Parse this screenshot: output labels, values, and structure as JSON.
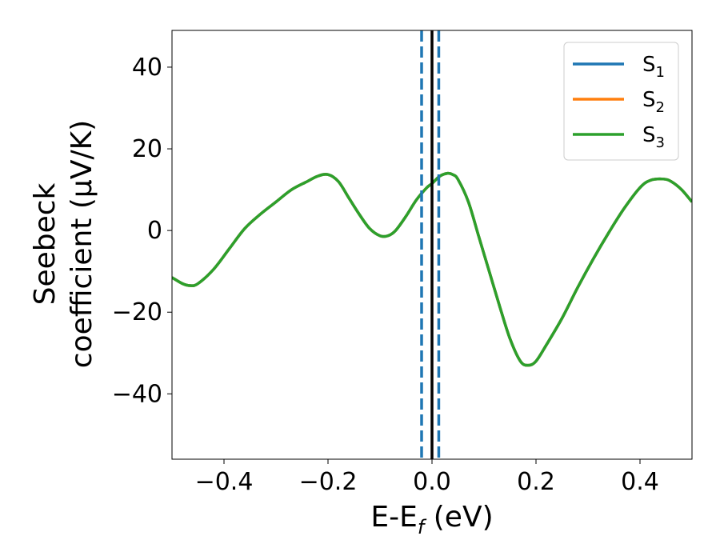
{
  "chart_data": {
    "type": "line",
    "title": "",
    "xlabel": {
      "main": "E-E",
      "sub": "f",
      "unit": " (eV)"
    },
    "ylabel": {
      "line1": "Seebeck",
      "line2": "coefficient  (μV/K)"
    },
    "xlim": [
      -0.5,
      0.5
    ],
    "ylim": [
      -56,
      49
    ],
    "x_ticks": [
      -0.4,
      -0.2,
      0.0,
      0.2,
      0.4
    ],
    "x_tick_labels": [
      "−0.4",
      "−0.2",
      "0.0",
      "0.2",
      "0.4"
    ],
    "y_ticks": [
      -40,
      -20,
      0,
      20,
      40
    ],
    "y_tick_labels": [
      "−40",
      "−20",
      "0",
      "20",
      "40"
    ],
    "grid": false,
    "legend_position": "top-right",
    "series": [
      {
        "name": "S",
        "sub": "1",
        "color": "#1f77b4",
        "x": [
          -0.5,
          -0.48,
          -0.465,
          -0.45,
          -0.42,
          -0.39,
          -0.36,
          -0.33,
          -0.3,
          -0.27,
          -0.24,
          -0.22,
          -0.2,
          -0.18,
          -0.16,
          -0.14,
          -0.12,
          -0.1,
          -0.085,
          -0.07,
          -0.05,
          -0.03,
          -0.01,
          0.0,
          0.015,
          0.03,
          0.04,
          0.05,
          0.07,
          0.09,
          0.11,
          0.13,
          0.15,
          0.17,
          0.185,
          0.2,
          0.22,
          0.25,
          0.28,
          0.31,
          0.34,
          0.37,
          0.4,
          0.42,
          0.445,
          0.46,
          0.48,
          0.5
        ],
        "y": [
          -11.5,
          -13.0,
          -13.5,
          -13.0,
          -9.5,
          -4.5,
          0.5,
          4.0,
          7.0,
          10.0,
          12.0,
          13.3,
          13.7,
          12.0,
          8.0,
          4.0,
          0.5,
          -1.3,
          -1.3,
          0.0,
          3.5,
          7.5,
          10.5,
          11.5,
          13.3,
          14.0,
          13.7,
          12.5,
          7.0,
          -1.5,
          -10.0,
          -18.5,
          -26.5,
          -32.0,
          -33.0,
          -32.0,
          -28.0,
          -21.5,
          -14.0,
          -7.0,
          -0.5,
          5.5,
          10.5,
          12.3,
          12.6,
          12.0,
          10.0,
          7.0
        ]
      },
      {
        "name": "S",
        "sub": "2",
        "color": "#ff7f0e",
        "x": [
          -0.5,
          -0.48,
          -0.465,
          -0.45,
          -0.42,
          -0.39,
          -0.36,
          -0.33,
          -0.3,
          -0.27,
          -0.24,
          -0.22,
          -0.2,
          -0.18,
          -0.16,
          -0.14,
          -0.12,
          -0.1,
          -0.085,
          -0.07,
          -0.05,
          -0.03,
          -0.01,
          0.0,
          0.015,
          0.03,
          0.04,
          0.05,
          0.07,
          0.09,
          0.11,
          0.13,
          0.15,
          0.17,
          0.185,
          0.2,
          0.22,
          0.25,
          0.28,
          0.31,
          0.34,
          0.37,
          0.4,
          0.42,
          0.445,
          0.46,
          0.48,
          0.5
        ],
        "y": [
          -11.5,
          -13.0,
          -13.5,
          -13.0,
          -9.5,
          -4.5,
          0.5,
          4.0,
          7.0,
          10.0,
          12.0,
          13.3,
          13.7,
          12.0,
          8.0,
          4.0,
          0.5,
          -1.3,
          -1.3,
          0.0,
          3.5,
          7.5,
          10.5,
          11.5,
          13.3,
          14.0,
          13.7,
          12.5,
          7.0,
          -1.5,
          -10.0,
          -18.5,
          -26.5,
          -32.0,
          -33.0,
          -32.0,
          -28.0,
          -21.5,
          -14.0,
          -7.0,
          -0.5,
          5.5,
          10.5,
          12.3,
          12.6,
          12.0,
          10.0,
          7.0
        ]
      },
      {
        "name": "S",
        "sub": "3",
        "color": "#2ca02c",
        "x": [
          -0.5,
          -0.48,
          -0.465,
          -0.45,
          -0.42,
          -0.39,
          -0.36,
          -0.33,
          -0.3,
          -0.27,
          -0.24,
          -0.22,
          -0.2,
          -0.18,
          -0.16,
          -0.14,
          -0.12,
          -0.1,
          -0.085,
          -0.07,
          -0.05,
          -0.03,
          -0.01,
          0.0,
          0.015,
          0.03,
          0.04,
          0.05,
          0.07,
          0.09,
          0.11,
          0.13,
          0.15,
          0.17,
          0.185,
          0.2,
          0.22,
          0.25,
          0.28,
          0.31,
          0.34,
          0.37,
          0.4,
          0.42,
          0.445,
          0.46,
          0.48,
          0.5
        ],
        "y": [
          -11.5,
          -13.0,
          -13.5,
          -13.0,
          -9.5,
          -4.5,
          0.5,
          4.0,
          7.0,
          10.0,
          12.0,
          13.3,
          13.7,
          12.0,
          8.0,
          4.0,
          0.5,
          -1.3,
          -1.3,
          0.0,
          3.5,
          7.5,
          10.5,
          11.5,
          13.3,
          14.0,
          13.7,
          12.5,
          7.0,
          -1.5,
          -10.0,
          -18.5,
          -26.5,
          -32.0,
          -33.0,
          -32.0,
          -28.0,
          -21.5,
          -14.0,
          -7.0,
          -0.5,
          5.5,
          10.5,
          12.3,
          12.6,
          12.0,
          10.0,
          7.0
        ]
      }
    ],
    "vlines": [
      {
        "x": 0.0,
        "style": "solid",
        "color": "#000000"
      },
      {
        "x": -0.02,
        "style": "dashed",
        "color": "#1f77b4"
      },
      {
        "x": 0.013,
        "style": "dashed",
        "color": "#1f77b4"
      }
    ]
  }
}
